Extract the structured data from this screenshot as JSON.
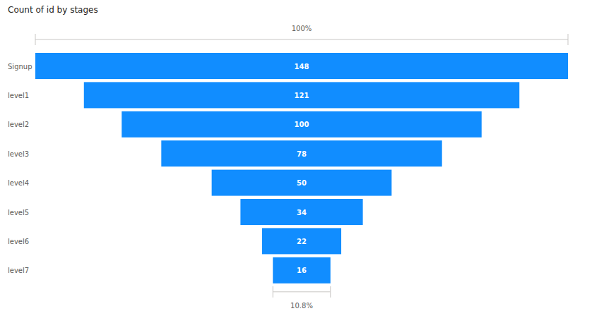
{
  "chart_data": {
    "type": "funnel",
    "title": "Count of id by stages",
    "categories": [
      "Signup",
      "level1",
      "level2",
      "level3",
      "level4",
      "level5",
      "level6",
      "level7"
    ],
    "values": [
      148,
      121,
      100,
      78,
      50,
      34,
      22,
      16
    ],
    "color": "#118dff",
    "data_labels": true,
    "annotations": [
      "100%",
      "10.8%"
    ]
  }
}
